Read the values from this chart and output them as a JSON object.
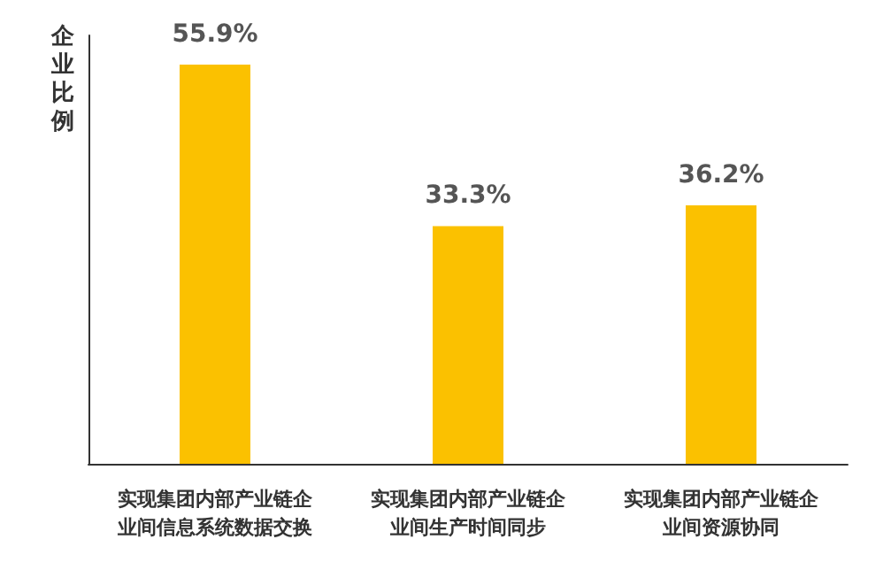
{
  "chart_data": {
    "type": "bar",
    "ylabel": "企业比例",
    "categories": [
      "实现集团内部产业链企业间信息系统数据交换",
      "实现集团内部产业链企业间生产时间同步",
      "实现集团内部产业链企业间资源协同"
    ],
    "values": [
      55.9,
      33.3,
      36.2
    ],
    "value_labels": [
      "55.9%",
      "33.3%",
      "36.2%"
    ],
    "color": "#fbc100",
    "tick_labels": "x"
  }
}
